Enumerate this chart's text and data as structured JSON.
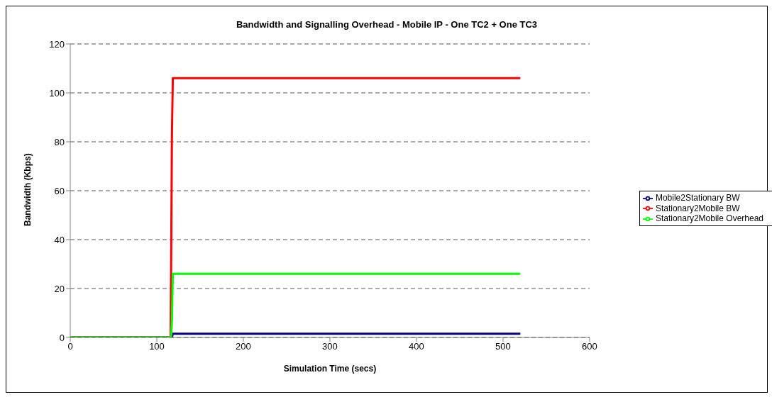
{
  "chart_data": {
    "type": "line",
    "title": "Bandwidth and Signalling Overhead - Mobile IP - One TC2 + One TC3",
    "xlabel": "Simulation Time (secs)",
    "ylabel": "Bandwidth (Kbps)",
    "series": [
      {
        "name": "Mobile2Stationary BW",
        "color": "#000080",
        "x": [
          0,
          116,
          117.5,
          118.5,
          520
        ],
        "values": [
          0,
          0,
          0,
          1.5,
          1.5
        ]
      },
      {
        "name": "Stationary2Mobile BW",
        "color": "#ff0000",
        "x": [
          0,
          116,
          117.5,
          118.5,
          520
        ],
        "values": [
          0,
          0,
          83,
          106,
          106
        ]
      },
      {
        "name": "Stationary2Mobile Overhead",
        "color": "#00ff00",
        "x": [
          0,
          116.5,
          117.5,
          118.5,
          520
        ],
        "values": [
          0,
          0,
          7,
          26,
          26
        ]
      }
    ],
    "xlim": [
      0,
      600
    ],
    "xticks": [
      0,
      100,
      200,
      300,
      400,
      500,
      600
    ],
    "ylim": [
      0,
      120
    ],
    "yticks": [
      0,
      20,
      40,
      60,
      80,
      100,
      120
    ],
    "grid": "y",
    "legend": "right",
    "marker": "none",
    "line_style": "solid"
  }
}
